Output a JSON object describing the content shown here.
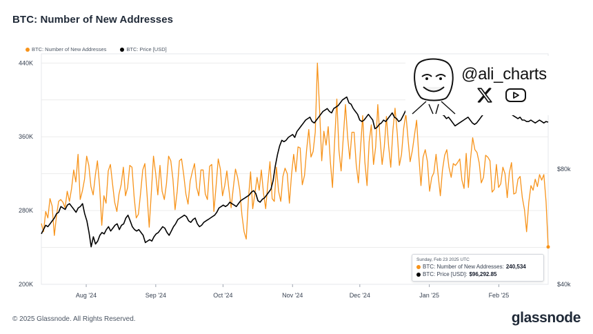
{
  "title": "BTC: Number of New Addresses",
  "legend": [
    {
      "name": "BTC: Number of New Addresses",
      "color": "#f7931a"
    },
    {
      "name": "BTC: Price [USD]",
      "color": "#000000"
    }
  ],
  "watermark": {
    "handle": "@ali_charts",
    "icons": [
      "avatar-icon",
      "x-logo-icon",
      "youtube-icon"
    ]
  },
  "tooltip": {
    "date": "Sunday, Feb 23 2025 UTC",
    "row1_label": "BTC: Number of New Addresses: ",
    "row1_value": "240,534",
    "row2_label": "BTC: Price [USD]: ",
    "row2_value": "$96,292.85"
  },
  "footer": {
    "copyright": "© 2025 Glassnode. All Rights Reserved.",
    "brand": "glassnode"
  },
  "chart_data": {
    "type": "line",
    "title": "BTC: Number of New Addresses",
    "x_tick_labels": [
      "Aug '24",
      "Sep '24",
      "Oct '24",
      "Nov '24",
      "Dec '24",
      "Jan '25",
      "Feb '25"
    ],
    "x_range": [
      "2024-07-12",
      "2025-02-23"
    ],
    "y_left": {
      "ticks": [
        200000,
        280000,
        360000,
        440000
      ],
      "tick_labels": [
        "200K",
        "280K",
        "360K",
        "440K"
      ],
      "range": [
        200000,
        450000
      ]
    },
    "y_right": {
      "ticks": [
        40000,
        80000
      ],
      "tick_labels": [
        "$40k",
        "$80k"
      ],
      "range": [
        40000,
        120000
      ]
    },
    "grid": true,
    "legend_position": "top-left",
    "series": [
      {
        "name": "BTC: Number of New Addresses",
        "axis": "left",
        "color": "#f7931a",
        "values": [
          266000,
          257000,
          279000,
          272000,
          293000,
          285000,
          253000,
          274000,
          290000,
          292000,
          289000,
          283000,
          301000,
          290000,
          304000,
          324000,
          311000,
          341000,
          292000,
          301000,
          314000,
          339000,
          329000,
          306000,
          297000,
          318000,
          334000,
          307000,
          264000,
          296000,
          288000,
          323000,
          330000,
          309000,
          289000,
          279000,
          298000,
          308000,
          327000,
          296000,
          305000,
          329000,
          327000,
          295000,
          272000,
          276000,
          299000,
          324000,
          331000,
          297000,
          262000,
          300000,
          339000,
          320000,
          297000,
          329000,
          301000,
          292000,
          309000,
          339000,
          334000,
          314000,
          281000,
          301000,
          334000,
          336000,
          319000,
          298000,
          287000,
          312000,
          322000,
          331000,
          305000,
          296000,
          324000,
          324000,
          298000,
          292000,
          328000,
          330000,
          279000,
          306000,
          336000,
          325000,
          296000,
          307000,
          323000,
          302000,
          283000,
          305000,
          325000,
          316000,
          302000,
          275000,
          257000,
          249000,
          293000,
          322000,
          282000,
          298000,
          316000,
          302000,
          324000,
          299000,
          282000,
          309000,
          333000,
          293000,
          290000,
          327000,
          301000,
          290000,
          317000,
          326000,
          320000,
          288000,
          319000,
          341000,
          322000,
          349000,
          348000,
          308000,
          318000,
          346000,
          368000,
          338000,
          344000,
          365000,
          440000,
          389000,
          334000,
          366000,
          351000,
          371000,
          333000,
          305000,
          357000,
          401000,
          345000,
          323000,
          360000,
          395000,
          360000,
          336000,
          365000,
          365000,
          330000,
          310000,
          348000,
          383000,
          333000,
          307000,
          355000,
          373000,
          330000,
          349000,
          395000,
          360000,
          330000,
          349000,
          382000,
          350000,
          327000,
          367000,
          391000,
          364000,
          329000,
          341000,
          369000,
          385000,
          358000,
          333000,
          345000,
          362000,
          378000,
          340000,
          307000,
          338000,
          346000,
          333000,
          301000,
          316000,
          321000,
          341000,
          318000,
          296000,
          324000,
          340000,
          346000,
          327000,
          316000,
          331000,
          329000,
          332000,
          336000,
          313000,
          304000,
          342000,
          305000,
          336000,
          359000,
          346000,
          343000,
          332000,
          310000,
          316000,
          340000,
          338000,
          334000,
          300000,
          303000,
          330000,
          305000,
          309000,
          327000,
          320000,
          294000,
          321000,
          332000,
          298000,
          299000,
          314000,
          317000,
          294000,
          281000,
          257000,
          289000,
          307000,
          302000,
          314000,
          306000,
          319000,
          313000,
          319000,
          290000,
          240534
        ]
      },
      {
        "name": "BTC: Price [USD]",
        "axis": "right",
        "color": "#000000",
        "values": [
          57500,
          59000,
          60500,
          60000,
          61000,
          62000,
          63000,
          64500,
          65000,
          67000,
          66500,
          66000,
          67500,
          68000,
          67000,
          66000,
          65000,
          66500,
          67000,
          68000,
          64500,
          62000,
          58000,
          53000,
          56500,
          54000,
          55000,
          57000,
          58000,
          57500,
          59000,
          60000,
          58500,
          59500,
          60500,
          61000,
          59000,
          60500,
          61000,
          63000,
          64000,
          62000,
          60000,
          59000,
          58500,
          59000,
          58000,
          57000,
          54500,
          55000,
          55500,
          55000,
          56500,
          57500,
          58000,
          59000,
          60000,
          59500,
          58000,
          57000,
          58500,
          60000,
          61000,
          62500,
          63000,
          63500,
          64000,
          63500,
          62000,
          61500,
          62500,
          63000,
          61000,
          60000,
          60500,
          61500,
          62000,
          62500,
          63000,
          63500,
          64000,
          65000,
          66500,
          67000,
          67500,
          67000,
          67500,
          68500,
          68000,
          67500,
          67000,
          68000,
          69000,
          69500,
          70000,
          70500,
          71000,
          72000,
          72500,
          71500,
          69000,
          68500,
          69500,
          70000,
          71000,
          72000,
          73000,
          76000,
          81000,
          85000,
          88000,
          90000,
          89500,
          90000,
          91000,
          91500,
          92000,
          91000,
          93000,
          94000,
          95000,
          96000,
          97000,
          97500,
          98000,
          96500,
          96000,
          97000,
          98000,
          99000,
          100000,
          100500,
          101000,
          100000,
          99500,
          101000,
          101500,
          102000,
          103000,
          104000,
          104500,
          105000,
          103000,
          102500,
          101000,
          100000,
          99000,
          97000,
          96500,
          97000,
          98000,
          99000,
          98000,
          97000,
          94000,
          94500,
          95500,
          96000,
          97000,
          96500,
          97500,
          98500,
          99500,
          98000,
          97500,
          96500,
          97000,
          98500,
          100000,
          101000,
          102000,
          103000,
          104000,
          105000,
          105500,
          104000,
          103000,
          104000,
          105000,
          104500,
          104000,
          103000,
          102500,
          101500,
          100000,
          99000,
          98500,
          97500,
          98000,
          97000,
          96000,
          95000,
          95500,
          96000,
          96500,
          97000,
          97500,
          98000,
          97000,
          96000,
          95500,
          96000,
          97000,
          98000,
          99000,
          100000,
          101000,
          102000,
          103000,
          104000,
          104500,
          103000,
          102000,
          101000,
          100500,
          101000,
          99500,
          99000,
          98500,
          98000,
          97500,
          98000,
          97000,
          97000,
          96500,
          96500,
          97000,
          96500,
          96000,
          96500,
          97000,
          96500,
          96000,
          96500,
          96292.85
        ]
      }
    ]
  }
}
